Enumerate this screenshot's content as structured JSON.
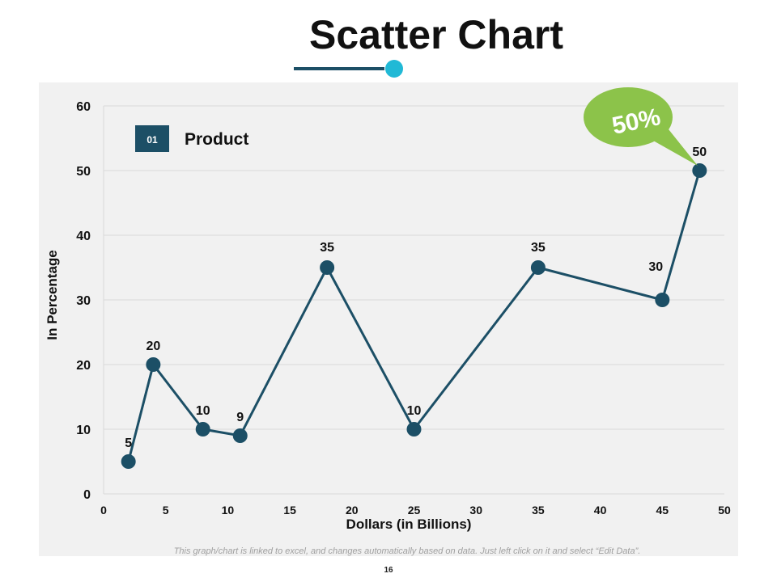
{
  "title": "Scatter Chart",
  "footnote": "This graph/chart is linked to excel, and changes automatically based on data. Just left click on it and select “Edit Data”.",
  "page_number": "16",
  "callout": {
    "text": "50%",
    "color": "#8cc34a"
  },
  "legend": {
    "number": "01",
    "color": "#1c4f66"
  },
  "colors": {
    "series": "#1c4f66",
    "grid": "#d9d9d9",
    "panel": "#f1f1f1",
    "accent": "#21b9d6"
  },
  "chart_data": {
    "type": "scatter",
    "title": "",
    "xlabel": "Dollars (in Billions)",
    "ylabel": "In Percentage",
    "xlim": [
      0,
      50
    ],
    "ylim": [
      0,
      60
    ],
    "xticks": [
      "0",
      "5",
      "10",
      "15",
      "20",
      "25",
      "30",
      "35",
      "40",
      "45",
      "50"
    ],
    "yticks": [
      "0",
      "10",
      "20",
      "30",
      "40",
      "50",
      "60"
    ],
    "grid": true,
    "legend_position": "top-left",
    "series": [
      {
        "name": "Product",
        "x": [
          2,
          4,
          8,
          11,
          18,
          25,
          35,
          45,
          48
        ],
        "y": [
          5,
          20,
          10,
          9,
          35,
          10,
          35,
          30,
          50
        ],
        "labels": [
          "5",
          "20",
          "10",
          "9",
          "35",
          "10",
          "35",
          "30",
          "50"
        ]
      }
    ]
  }
}
